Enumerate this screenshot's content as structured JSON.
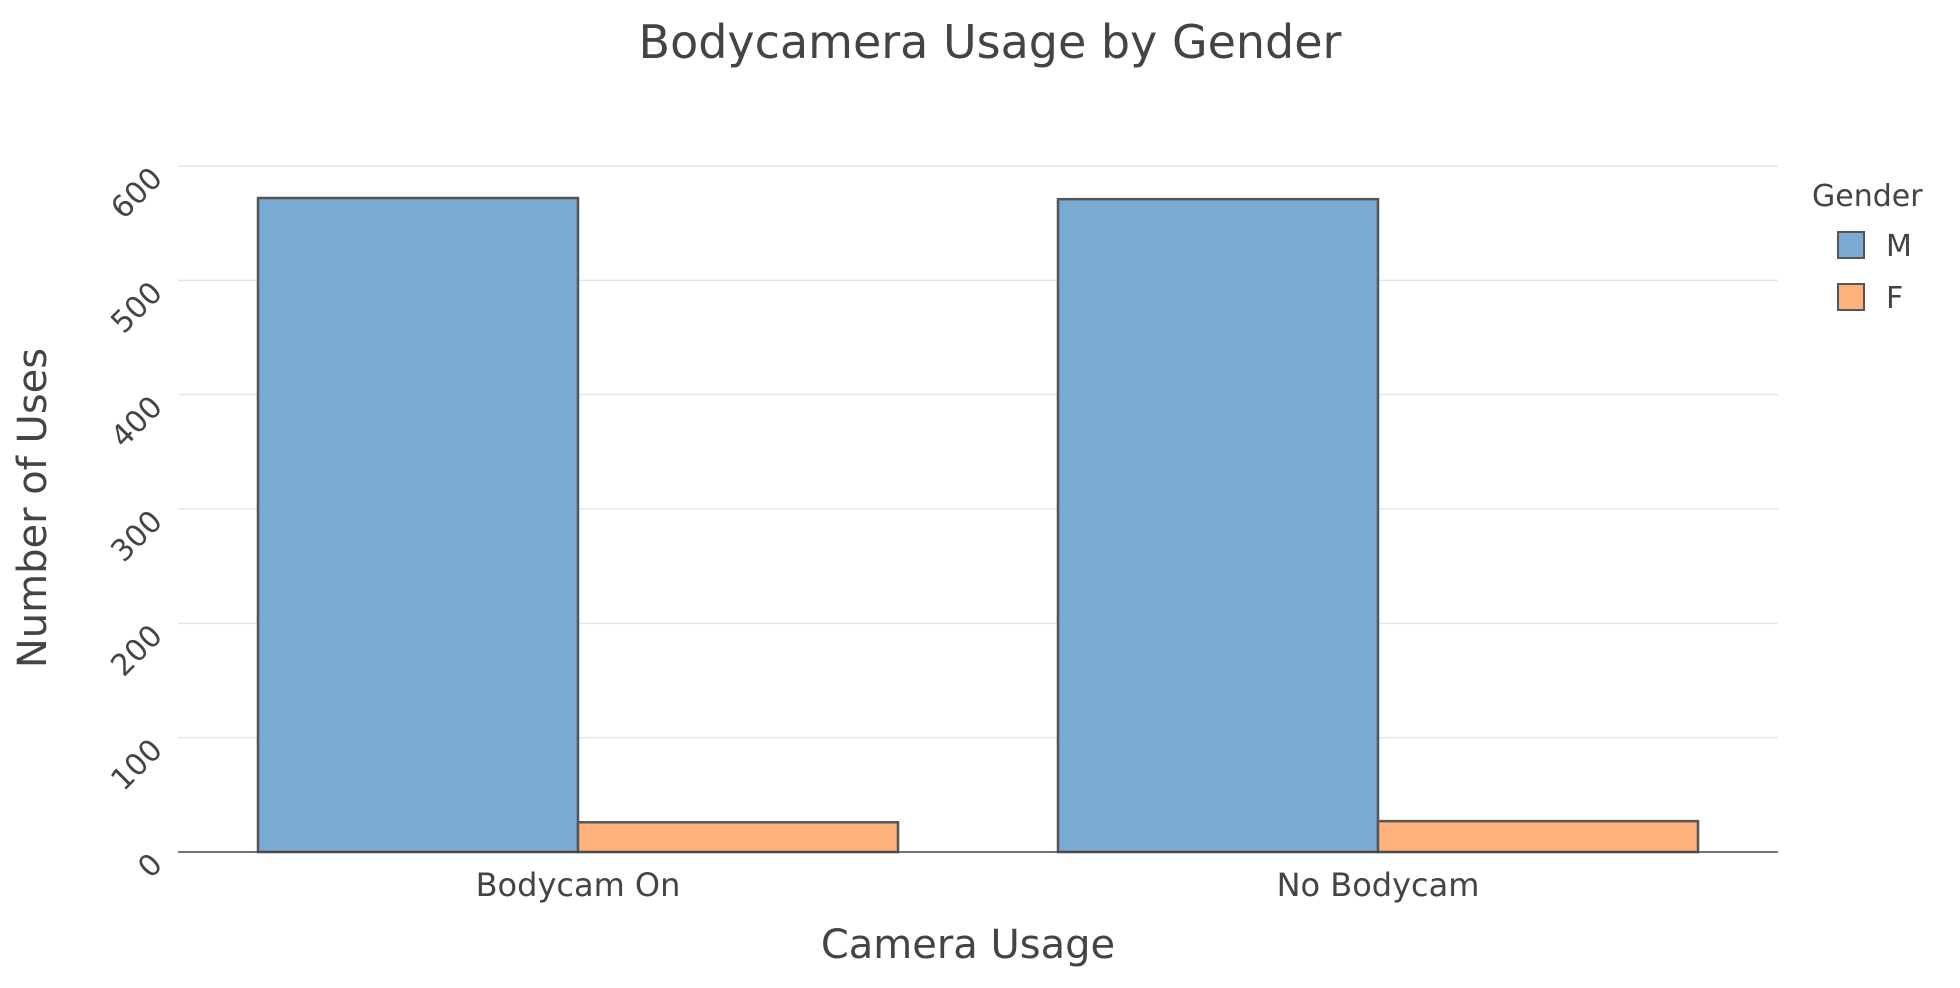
{
  "chart_data": {
    "type": "bar",
    "title": "Bodycamera Usage by Gender",
    "xlabel": "Camera Usage",
    "ylabel": "Number of Uses",
    "categories": [
      "Bodycam On",
      "No Bodycam"
    ],
    "series": [
      {
        "name": "M",
        "values": [
          572,
          571
        ],
        "color": "#7aaad2"
      },
      {
        "name": "F",
        "values": [
          26,
          27
        ],
        "color": "#feb17b"
      }
    ],
    "ylim": [
      0,
      600
    ],
    "yticks": [
      0,
      100,
      200,
      300,
      400,
      500,
      600
    ],
    "legend": {
      "title": "Gender",
      "position": "right"
    },
    "grid": true,
    "bar_outline_color": "#555555",
    "grid_color": "#e6e6e6"
  }
}
